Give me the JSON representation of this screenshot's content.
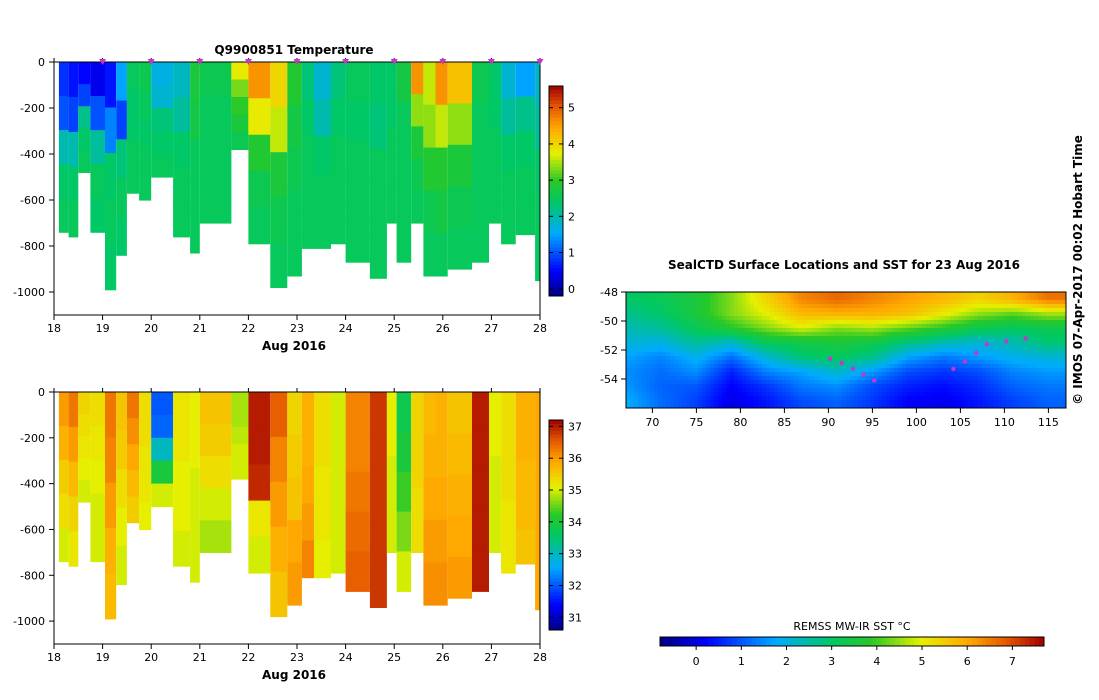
{
  "chart_data": [
    {
      "type": "heatmap",
      "title": "Q9900851  Temperature",
      "xlabel": "Aug 2016",
      "x_ticks": [
        "18",
        "19",
        "20",
        "21",
        "22",
        "23",
        "24",
        "25",
        "26",
        "27",
        "28"
      ],
      "y_ticks": [
        "0",
        "-200",
        "-400",
        "-600",
        "-800",
        "-1000"
      ],
      "xlim": [
        18,
        28
      ],
      "ylim": [
        -1100,
        0
      ],
      "colorbar_ticks": [
        "0",
        "1",
        "2",
        "3",
        "4",
        "5"
      ],
      "colorbar_range": [
        -0.2,
        5.6
      ],
      "profile_markers_x": [
        19.0,
        20.0,
        21.0,
        22.0,
        23.0,
        24.0,
        25.0,
        26.0,
        27.0,
        28.0
      ],
      "profiles": [
        {
          "x0": 18.1,
          "x1": 18.3,
          "depth": 740,
          "values": [
            0.8,
            1.0,
            2.0,
            2.4,
            2.5
          ]
        },
        {
          "x0": 18.3,
          "x1": 18.5,
          "depth": 760,
          "values": [
            0.6,
            0.9,
            2.0,
            2.4,
            2.5
          ]
        },
        {
          "x0": 18.5,
          "x1": 18.75,
          "depth": 480,
          "values": [
            0.5,
            0.9,
            2.2,
            2.4,
            2.5
          ]
        },
        {
          "x0": 18.75,
          "x1": 19.05,
          "depth": 740,
          "values": [
            0.4,
            1.0,
            2.1,
            2.5,
            2.4
          ]
        },
        {
          "x0": 19.05,
          "x1": 19.28,
          "depth": 990,
          "values": [
            0.6,
            1.3,
            2.4,
            2.5,
            2.4
          ]
        },
        {
          "x0": 19.28,
          "x1": 19.5,
          "depth": 840,
          "values": [
            1.5,
            0.9,
            2.3,
            2.5,
            2.4
          ]
        },
        {
          "x0": 19.5,
          "x1": 19.75,
          "depth": 570,
          "values": [
            2.5,
            2.4,
            2.4,
            2.5,
            2.5
          ]
        },
        {
          "x0": 19.75,
          "x1": 20.0,
          "depth": 600,
          "values": [
            2.6,
            2.5,
            2.4,
            2.5,
            2.5
          ]
        },
        {
          "x0": 20.0,
          "x1": 20.45,
          "depth": 500,
          "values": [
            1.7,
            1.8,
            2.3,
            2.4,
            2.5
          ]
        },
        {
          "x0": 20.45,
          "x1": 20.8,
          "depth": 760,
          "values": [
            1.9,
            2.1,
            2.4,
            2.5,
            2.5
          ]
        },
        {
          "x0": 20.8,
          "x1": 21.0,
          "depth": 830,
          "values": [
            2.8,
            2.7,
            2.5,
            2.5,
            2.5
          ]
        },
        {
          "x0": 21.0,
          "x1": 21.65,
          "depth": 700,
          "values": [
            2.6,
            2.5,
            2.5,
            2.5,
            2.5
          ]
        },
        {
          "x0": 21.65,
          "x1": 22.0,
          "depth": 380,
          "values": [
            3.8,
            3.3,
            3.0,
            2.8,
            2.6
          ]
        },
        {
          "x0": 22.0,
          "x1": 22.45,
          "depth": 790,
          "values": [
            4.6,
            3.8,
            2.9,
            2.6,
            2.5
          ]
        },
        {
          "x0": 22.45,
          "x1": 22.8,
          "depth": 980,
          "values": [
            4.0,
            3.6,
            2.8,
            2.6,
            2.5
          ]
        },
        {
          "x0": 22.8,
          "x1": 23.1,
          "depth": 930,
          "values": [
            2.9,
            2.7,
            2.6,
            2.5,
            2.5
          ]
        },
        {
          "x0": 23.1,
          "x1": 23.35,
          "depth": 810,
          "values": [
            2.3,
            2.4,
            2.5,
            2.5,
            2.5
          ]
        },
        {
          "x0": 23.35,
          "x1": 23.7,
          "depth": 810,
          "values": [
            1.8,
            2.0,
            2.4,
            2.5,
            2.5
          ]
        },
        {
          "x0": 23.7,
          "x1": 24.0,
          "depth": 790,
          "values": [
            2.3,
            2.4,
            2.5,
            2.5,
            2.5
          ]
        },
        {
          "x0": 24.0,
          "x1": 24.5,
          "depth": 870,
          "values": [
            2.5,
            2.4,
            2.5,
            2.5,
            2.5
          ]
        },
        {
          "x0": 24.5,
          "x1": 24.85,
          "depth": 940,
          "values": [
            2.4,
            2.3,
            2.5,
            2.5,
            2.5
          ]
        },
        {
          "x0": 24.85,
          "x1": 25.05,
          "depth": 700,
          "values": [
            2.4,
            2.4,
            2.5,
            2.5,
            2.5
          ]
        },
        {
          "x0": 25.05,
          "x1": 25.35,
          "depth": 870,
          "values": [
            2.7,
            2.5,
            2.5,
            2.5,
            2.5
          ]
        },
        {
          "x0": 25.35,
          "x1": 25.6,
          "depth": 700,
          "values": [
            4.6,
            3.4,
            2.8,
            2.6,
            2.5
          ]
        },
        {
          "x0": 25.6,
          "x1": 25.85,
          "depth": 930,
          "values": [
            3.6,
            3.4,
            2.9,
            2.6,
            2.5
          ]
        },
        {
          "x0": 25.85,
          "x1": 26.1,
          "depth": 930,
          "values": [
            4.6,
            3.6,
            2.9,
            2.7,
            2.5
          ]
        },
        {
          "x0": 26.1,
          "x1": 26.6,
          "depth": 900,
          "values": [
            4.2,
            3.4,
            2.8,
            2.6,
            2.5
          ]
        },
        {
          "x0": 26.6,
          "x1": 26.95,
          "depth": 870,
          "values": [
            2.6,
            2.5,
            2.5,
            2.5,
            2.5
          ]
        },
        {
          "x0": 26.95,
          "x1": 27.2,
          "depth": 700,
          "values": [
            2.4,
            2.4,
            2.5,
            2.5,
            2.5
          ]
        },
        {
          "x0": 27.2,
          "x1": 27.5,
          "depth": 790,
          "values": [
            1.8,
            2.1,
            2.4,
            2.5,
            2.5
          ]
        },
        {
          "x0": 27.5,
          "x1": 27.9,
          "depth": 750,
          "values": [
            1.5,
            2.2,
            2.4,
            2.5,
            2.5
          ]
        },
        {
          "x0": 27.9,
          "x1": 28.1,
          "depth": 950,
          "values": [
            1.9,
            2.1,
            2.4,
            2.5,
            2.5
          ]
        }
      ]
    },
    {
      "type": "heatmap",
      "title": "",
      "xlabel": "Aug 2016",
      "x_ticks": [
        "18",
        "19",
        "20",
        "21",
        "22",
        "23",
        "24",
        "25",
        "26",
        "27",
        "28"
      ],
      "y_ticks": [
        "0",
        "-200",
        "-400",
        "-600",
        "-800",
        "-1000"
      ],
      "xlim": [
        18,
        28
      ],
      "ylim": [
        -1100,
        0
      ],
      "colorbar_ticks": [
        "31",
        "32",
        "33",
        "34",
        "35",
        "36",
        "37"
      ],
      "colorbar_range": [
        30.6,
        37.2
      ],
      "profiles": [
        {
          "x0": 18.1,
          "x1": 18.3,
          "depth": 740,
          "values": [
            36.0,
            35.8,
            35.5,
            35.3,
            35.0
          ]
        },
        {
          "x0": 18.3,
          "x1": 18.5,
          "depth": 760,
          "values": [
            36.3,
            36.0,
            35.7,
            35.4,
            35.2
          ]
        },
        {
          "x0": 18.5,
          "x1": 18.75,
          "depth": 480,
          "values": [
            35.4,
            35.3,
            35.2,
            35.1,
            35.0
          ]
        },
        {
          "x0": 18.75,
          "x1": 19.05,
          "depth": 740,
          "values": [
            35.3,
            35.2,
            35.1,
            35.0,
            35.0
          ]
        },
        {
          "x0": 19.05,
          "x1": 19.28,
          "depth": 990,
          "values": [
            36.3,
            36.2,
            36.0,
            35.8,
            35.7
          ]
        },
        {
          "x0": 19.28,
          "x1": 19.5,
          "depth": 840,
          "values": [
            35.6,
            35.5,
            35.3,
            35.1,
            35.0
          ]
        },
        {
          "x0": 19.5,
          "x1": 19.75,
          "depth": 570,
          "values": [
            36.3,
            36.1,
            35.9,
            35.7,
            35.5
          ]
        },
        {
          "x0": 19.75,
          "x1": 20.0,
          "depth": 600,
          "values": [
            35.3,
            35.3,
            35.2,
            35.2,
            35.1
          ]
        },
        {
          "x0": 20.0,
          "x1": 20.45,
          "depth": 500,
          "values": [
            32.0,
            32.1,
            33.0,
            34.0,
            35.0
          ]
        },
        {
          "x0": 20.45,
          "x1": 20.8,
          "depth": 760,
          "values": [
            35.2,
            35.2,
            35.1,
            35.1,
            35.0
          ]
        },
        {
          "x0": 20.8,
          "x1": 21.0,
          "depth": 830,
          "values": [
            35.1,
            35.1,
            35.0,
            35.0,
            35.0
          ]
        },
        {
          "x0": 21.0,
          "x1": 21.65,
          "depth": 700,
          "values": [
            35.6,
            35.5,
            35.3,
            35.0,
            34.8
          ]
        },
        {
          "x0": 21.65,
          "x1": 22.0,
          "depth": 380,
          "values": [
            34.8,
            34.8,
            34.9,
            35.0,
            35.0
          ]
        },
        {
          "x0": 22.0,
          "x1": 22.45,
          "depth": 790,
          "values": [
            37.0,
            37.0,
            36.9,
            35.2,
            35.0
          ]
        },
        {
          "x0": 22.45,
          "x1": 22.8,
          "depth": 980,
          "values": [
            36.5,
            36.2,
            36.0,
            35.8,
            35.6
          ]
        },
        {
          "x0": 22.8,
          "x1": 23.1,
          "depth": 930,
          "values": [
            35.4,
            35.5,
            35.6,
            35.9,
            36.0
          ]
        },
        {
          "x0": 23.1,
          "x1": 23.35,
          "depth": 810,
          "values": [
            35.8,
            35.8,
            35.9,
            36.0,
            36.2
          ]
        },
        {
          "x0": 23.35,
          "x1": 23.7,
          "depth": 810,
          "values": [
            35.3,
            35.3,
            35.2,
            35.2,
            35.1
          ]
        },
        {
          "x0": 23.7,
          "x1": 24.0,
          "depth": 790,
          "values": [
            35.0,
            35.0,
            35.0,
            35.0,
            35.0
          ]
        },
        {
          "x0": 24.0,
          "x1": 24.5,
          "depth": 870,
          "values": [
            36.2,
            36.2,
            36.3,
            36.4,
            36.5
          ]
        },
        {
          "x0": 24.5,
          "x1": 24.85,
          "depth": 940,
          "values": [
            36.8,
            36.8,
            36.8,
            36.8,
            36.8
          ]
        },
        {
          "x0": 24.85,
          "x1": 25.05,
          "depth": 700,
          "values": [
            35.1,
            35.1,
            35.0,
            35.0,
            35.0
          ]
        },
        {
          "x0": 25.05,
          "x1": 25.35,
          "depth": 870,
          "values": [
            33.8,
            34.0,
            34.3,
            34.6,
            35.0
          ]
        },
        {
          "x0": 25.35,
          "x1": 25.6,
          "depth": 700,
          "values": [
            35.4,
            35.4,
            35.4,
            35.3,
            35.3
          ]
        },
        {
          "x0": 25.6,
          "x1": 25.85,
          "depth": 930,
          "values": [
            35.7,
            35.8,
            35.9,
            36.0,
            36.1
          ]
        },
        {
          "x0": 25.85,
          "x1": 26.1,
          "depth": 930,
          "values": [
            35.8,
            35.8,
            35.9,
            36.0,
            36.1
          ]
        },
        {
          "x0": 26.1,
          "x1": 26.6,
          "depth": 900,
          "values": [
            35.6,
            35.7,
            35.8,
            35.9,
            36.0
          ]
        },
        {
          "x0": 26.6,
          "x1": 26.95,
          "depth": 870,
          "values": [
            37.0,
            37.0,
            37.0,
            37.0,
            37.0
          ]
        },
        {
          "x0": 26.95,
          "x1": 27.2,
          "depth": 700,
          "values": [
            35.1,
            35.1,
            35.0,
            35.0,
            35.0
          ]
        },
        {
          "x0": 27.2,
          "x1": 27.5,
          "depth": 790,
          "values": [
            35.3,
            35.3,
            35.3,
            35.2,
            35.2
          ]
        },
        {
          "x0": 27.5,
          "x1": 27.9,
          "depth": 750,
          "values": [
            35.8,
            35.8,
            35.7,
            35.7,
            35.6
          ]
        },
        {
          "x0": 27.9,
          "x1": 28.1,
          "depth": 950,
          "values": [
            35.9,
            35.9,
            35.9,
            35.9,
            35.9
          ]
        }
      ]
    },
    {
      "type": "heatmap",
      "title": "SealCTD Surface Locations and SST for 23 Aug 2016",
      "x_ticks": [
        "70",
        "75",
        "80",
        "85",
        "90",
        "95",
        "100",
        "105",
        "110",
        "115"
      ],
      "y_ticks": [
        "-48",
        "-50",
        "-52",
        "-54"
      ],
      "xlim": [
        67,
        117
      ],
      "ylim": [
        -56,
        -48
      ],
      "colorbar_title": "REMSS MW-IR SST °C",
      "colorbar_ticks": [
        "0",
        "1",
        "2",
        "3",
        "4",
        "5",
        "6",
        "7"
      ],
      "colorbar_range": [
        -0.8,
        7.7
      ],
      "sst_grid_lon": [
        67,
        71,
        75,
        79,
        83,
        87,
        91,
        95,
        99,
        103,
        107,
        111,
        115
      ],
      "sst_grid_lat": [
        -48.5,
        -49.5,
        -50.5,
        -51.5,
        -52.5,
        -53.5,
        -54.5,
        -55.5
      ],
      "sst_grid_values": [
        [
          3.0,
          3.2,
          3.6,
          4.4,
          5.4,
          6.4,
          6.7,
          6.4,
          6.1,
          5.8,
          5.4,
          5.9,
          6.6
        ],
        [
          2.7,
          3.0,
          3.6,
          4.4,
          5.0,
          5.8,
          5.9,
          5.9,
          5.7,
          5.1,
          4.5,
          4.2,
          4.6
        ],
        [
          2.4,
          2.6,
          3.2,
          3.8,
          4.4,
          4.9,
          4.4,
          4.6,
          4.2,
          3.8,
          3.3,
          3.1,
          3.3
        ],
        [
          2.1,
          2.0,
          2.6,
          2.2,
          3.2,
          3.4,
          3.6,
          3.4,
          2.8,
          2.4,
          2.1,
          2.4,
          2.9
        ],
        [
          1.7,
          1.4,
          1.9,
          1.2,
          2.1,
          2.9,
          3.1,
          2.7,
          1.7,
          1.3,
          1.6,
          1.9,
          2.1
        ],
        [
          1.5,
          1.2,
          1.5,
          0.5,
          1.4,
          1.7,
          2.2,
          1.6,
          0.9,
          0.7,
          0.9,
          1.4,
          1.6
        ],
        [
          1.6,
          1.1,
          1.0,
          0.2,
          0.7,
          1.3,
          1.5,
          0.9,
          0.5,
          0.3,
          0.6,
          1.1,
          1.3
        ],
        [
          1.8,
          1.2,
          0.8,
          0.0,
          0.4,
          0.9,
          1.1,
          0.7,
          0.2,
          0.1,
          0.4,
          0.8,
          1.1
        ]
      ],
      "track_points": [
        {
          "lon": 90.2,
          "lat": -52.6
        },
        {
          "lon": 91.5,
          "lat": -52.9
        },
        {
          "lon": 92.8,
          "lat": -53.3
        },
        {
          "lon": 94.0,
          "lat": -53.7
        },
        {
          "lon": 95.2,
          "lat": -54.1
        },
        {
          "lon": 104.2,
          "lat": -53.3
        },
        {
          "lon": 105.5,
          "lat": -52.8
        },
        {
          "lon": 106.8,
          "lat": -52.2
        },
        {
          "lon": 108.0,
          "lat": -51.6
        },
        {
          "lon": 110.2,
          "lat": -51.4
        },
        {
          "lon": 112.4,
          "lat": -51.2
        }
      ]
    }
  ],
  "side_note": "© IMOS 07-Apr-2017 00:02 Hobart Time",
  "colors": {
    "marker": "#cc33cc",
    "track": "#cc33cc"
  }
}
